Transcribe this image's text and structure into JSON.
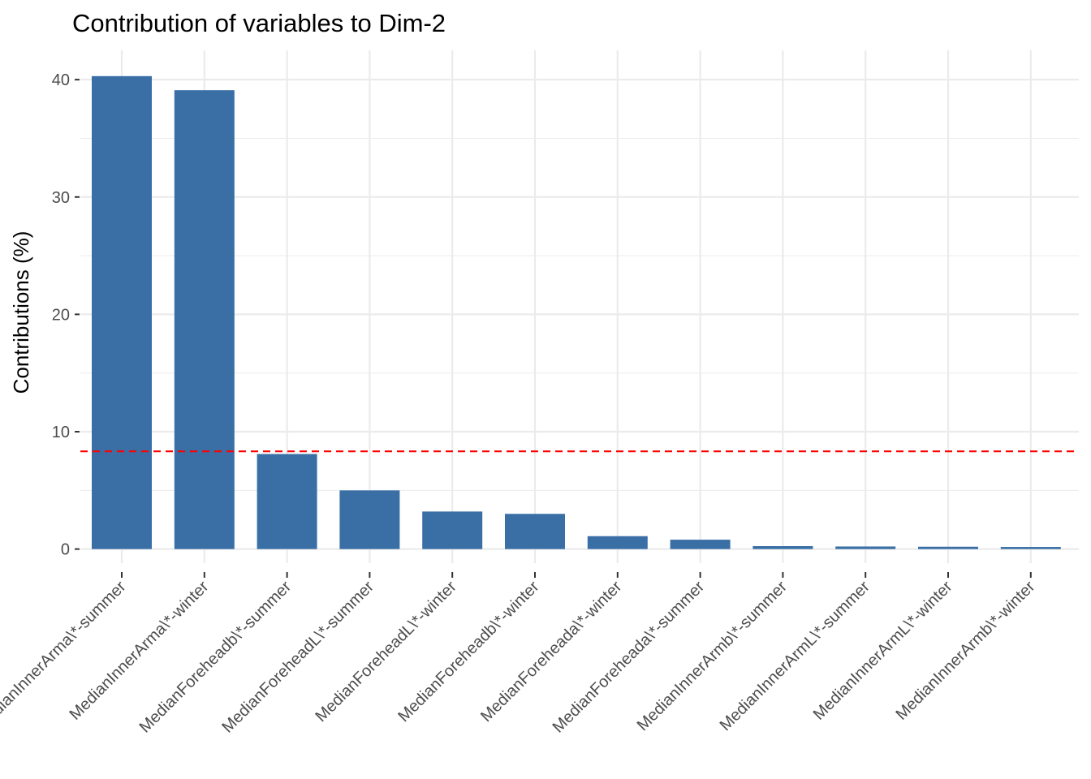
{
  "chart_data": {
    "type": "bar",
    "title": "Contribution of variables to Dim-2",
    "xlabel": "",
    "ylabel": "Contributions (%)",
    "categories": [
      "MedianInnerArma\\*-summer",
      "MedianInnerArma\\*-winter",
      "MedianForeheadb\\*-summer",
      "MedianForeheadL\\*-summer",
      "MedianForeheadL\\*-winter",
      "MedianForeheadb\\*-winter",
      "MedianForeheada\\*-winter",
      "MedianForeheada\\*-summer",
      "MedianInnerArmb\\*-summer",
      "MedianInnerArmL\\*-summer",
      "MedianInnerArmL\\*-winter",
      "MedianInnerArmb\\*-winter"
    ],
    "values": [
      40.3,
      39.1,
      8.1,
      5.0,
      3.2,
      3.0,
      1.1,
      0.8,
      0.25,
      0.22,
      0.2,
      0.18
    ],
    "ylim": [
      -1.2,
      42.5
    ],
    "yticks": [
      0,
      10,
      20,
      30,
      40
    ],
    "reference_line": {
      "value": 8.33,
      "style": "dashed",
      "color": "#ff0000"
    },
    "bar_color": "#3a6fa6",
    "grid": true,
    "grid_color": "#ebebeb",
    "legend": "none"
  }
}
